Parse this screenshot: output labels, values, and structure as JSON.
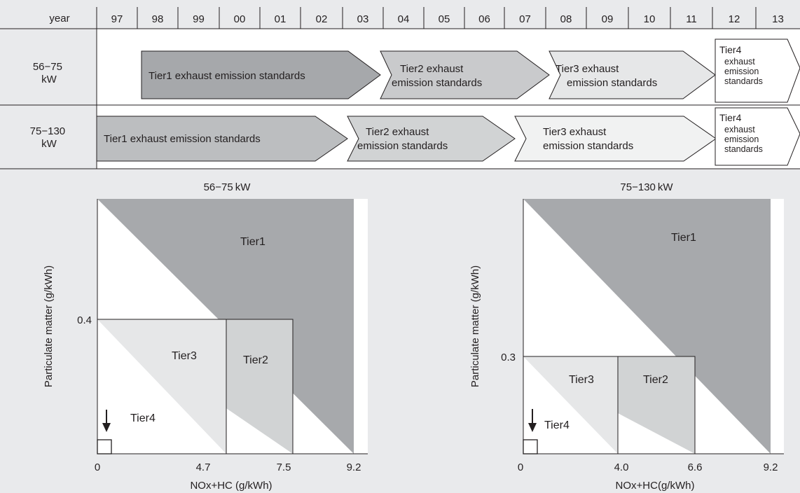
{
  "timeline": {
    "year_header": "year",
    "years": [
      "97",
      "98",
      "99",
      "00",
      "01",
      "02",
      "03",
      "04",
      "05",
      "06",
      "07",
      "08",
      "09",
      "10",
      "11",
      "12",
      "13"
    ],
    "rows": [
      {
        "label": [
          "56−75",
          "kW"
        ],
        "bands": [
          {
            "tier": "Tier1",
            "lines": [
              "Tier1 exhaust emission standards"
            ],
            "fill": "#a6a8ab"
          },
          {
            "tier": "Tier2",
            "lines": [
              "Tier2 exhaust",
              "emission standards"
            ],
            "fill": "#c9cacc"
          },
          {
            "tier": "Tier3",
            "lines": [
              "Tier3 exhaust",
              "emission standards"
            ],
            "fill": "#e6e7e8"
          },
          {
            "tier": "Tier4",
            "title": "Tier4",
            "lines": [
              "exhaust",
              "emission",
              "standards"
            ],
            "fill": "#ffffff"
          }
        ]
      },
      {
        "label": [
          "75−130",
          "kW"
        ],
        "bands": [
          {
            "tier": "Tier1",
            "lines": [
              "Tier1 exhaust emission standards"
            ],
            "fill": "#bcbec0"
          },
          {
            "tier": "Tier2",
            "lines": [
              "Tier2 exhaust",
              "emission standards"
            ],
            "fill": "#d1d3d4"
          },
          {
            "tier": "Tier3",
            "lines": [
              "Tier3 exhaust",
              "emission standards"
            ],
            "fill": "#f1f2f2"
          },
          {
            "tier": "Tier4",
            "title": "Tier4",
            "lines": [
              "exhaust",
              "emission",
              "standards"
            ],
            "fill": "#ffffff"
          }
        ]
      }
    ]
  },
  "charts": [
    {
      "title": "56−75 kW",
      "ylabel": "Particulate matter  (g/kWh)",
      "xlabel": "NOx+HC (g/kWh)",
      "x_ticks": [
        "0",
        "4.7",
        "7.5",
        "9.2"
      ],
      "y_ticks": [
        "0.4"
      ],
      "tier_labels": {
        "tier1": "Tier1",
        "tier2": "Tier2",
        "tier3": "Tier3",
        "tier4": "Tier4"
      },
      "colors": {
        "tier1": "#a7a9ac",
        "tier2": "#d1d3d4",
        "tier3": "#e6e7e8"
      }
    },
    {
      "title": "75−130 kW",
      "ylabel": "Particulate matter  (g/kWh)",
      "xlabel": "NOx+HC(g/kWh)",
      "x_ticks": [
        "0",
        "4.0",
        "6.6",
        "9.2"
      ],
      "y_ticks": [
        "0.3"
      ],
      "tier_labels": {
        "tier1": "Tier1",
        "tier2": "Tier2",
        "tier3": "Tier3",
        "tier4": "Tier4"
      },
      "colors": {
        "tier1": "#a7a9ac",
        "tier2": "#d1d3d4",
        "tier3": "#e6e7e8"
      }
    }
  ]
}
